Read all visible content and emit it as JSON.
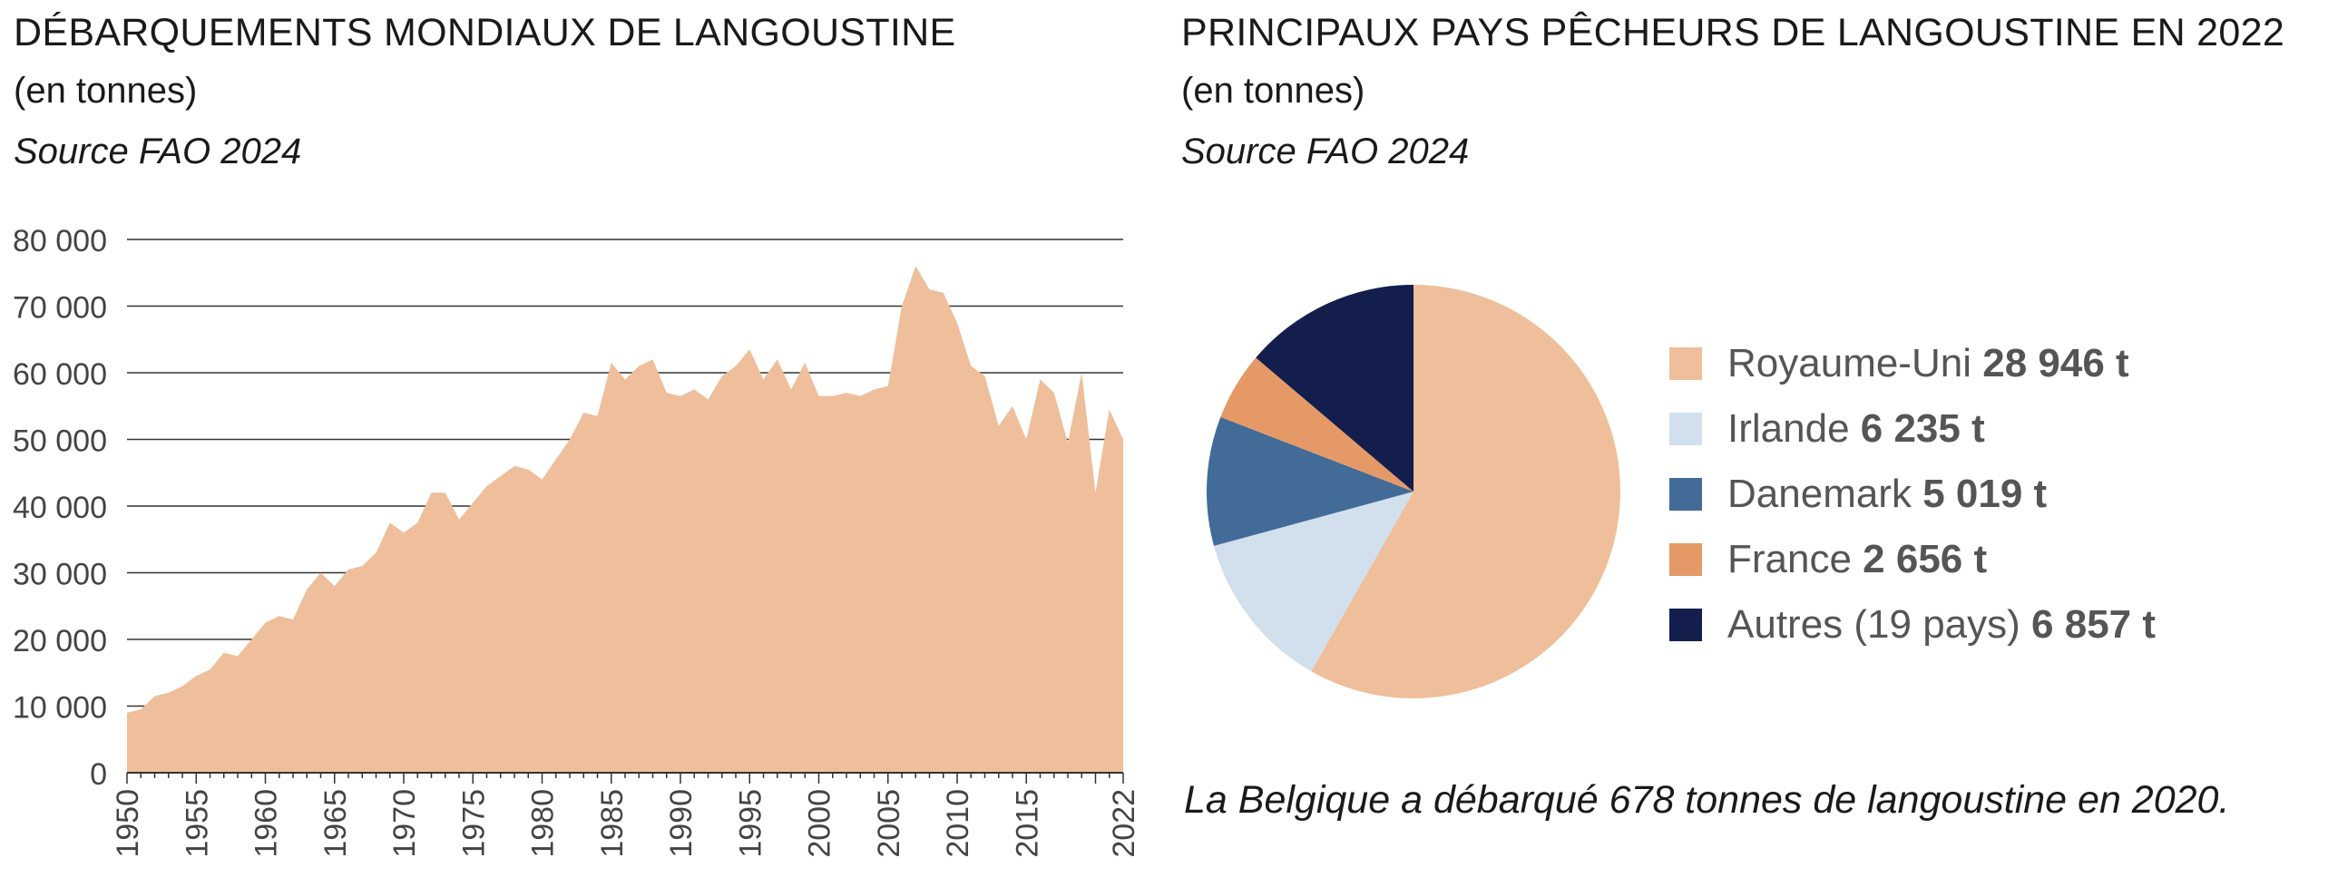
{
  "left": {
    "title": "DÉBARQUEMENTS MONDIAUX DE LANGOUSTINE",
    "unit": "(en tonnes)",
    "source": "Source FAO 2024"
  },
  "right": {
    "title": "PRINCIPAUX PAYS PÊCHEURS DE LANGOUSTINE EN 2022",
    "unit": "(en tonnes)",
    "source": "Source FAO 2024",
    "note": "La Belgique a débarqué 678 tonnes de langoustine en 2020."
  },
  "colors": {
    "area_fill": "#eebf9a",
    "gridline": "#333333",
    "axis_text": "#444444"
  },
  "chart_data": [
    {
      "type": "area",
      "title": "DÉBARQUEMENTS MONDIAUX DE LANGOUSTINE",
      "xlabel": "",
      "ylabel": "",
      "ylim": [
        0,
        80000
      ],
      "xlim": [
        1950,
        2022
      ],
      "grid": true,
      "y_ticks": [
        0,
        10000,
        20000,
        30000,
        40000,
        50000,
        60000,
        70000,
        80000
      ],
      "y_tick_labels": [
        "0",
        "10 000",
        "20 000",
        "30 000",
        "40 000",
        "50 000",
        "60 000",
        "70 000",
        "80 000"
      ],
      "x_tick_labels": [
        "1950",
        "1955",
        "1960",
        "1965",
        "1970",
        "1975",
        "1980",
        "1985",
        "1990",
        "1995",
        "2000",
        "2005",
        "2010",
        "2015",
        "2022"
      ],
      "x_ticks": [
        1950,
        1955,
        1960,
        1965,
        1970,
        1975,
        1980,
        1985,
        1990,
        1995,
        2000,
        2005,
        2010,
        2015,
        2022
      ],
      "x": [
        1950,
        1951,
        1952,
        1953,
        1954,
        1955,
        1956,
        1957,
        1958,
        1959,
        1960,
        1961,
        1962,
        1963,
        1964,
        1965,
        1966,
        1967,
        1968,
        1969,
        1970,
        1971,
        1972,
        1973,
        1974,
        1975,
        1976,
        1977,
        1978,
        1979,
        1980,
        1981,
        1982,
        1983,
        1984,
        1985,
        1986,
        1987,
        1988,
        1989,
        1990,
        1991,
        1992,
        1993,
        1994,
        1995,
        1996,
        1997,
        1998,
        1999,
        2000,
        2001,
        2002,
        2003,
        2004,
        2005,
        2006,
        2007,
        2008,
        2009,
        2010,
        2011,
        2012,
        2013,
        2014,
        2015,
        2016,
        2017,
        2018,
        2019,
        2020,
        2021,
        2022
      ],
      "values": [
        9000,
        9500,
        11500,
        12000,
        13000,
        14500,
        15500,
        18000,
        17500,
        20000,
        22500,
        23500,
        23000,
        27500,
        30000,
        28000,
        30500,
        31000,
        33000,
        37500,
        36000,
        37500,
        42000,
        42000,
        38000,
        40500,
        43000,
        44500,
        46000,
        45500,
        44000,
        47000,
        50000,
        54000,
        53500,
        61500,
        59000,
        61000,
        62000,
        57000,
        56500,
        57500,
        56000,
        59500,
        61000,
        63500,
        59000,
        62000,
        57500,
        61500,
        56500,
        56500,
        57000,
        56500,
        57500,
        58000,
        70000,
        76000,
        72500,
        72000,
        67500,
        61000,
        59500,
        52000,
        55000,
        50000,
        59000,
        57000,
        49500,
        60000,
        42000,
        54500,
        50000
      ]
    },
    {
      "type": "pie",
      "title": "PRINCIPAUX PAYS PÊCHEURS DE LANGOUSTINE EN 2022",
      "legend_position": "right",
      "slices": [
        {
          "name": "Royaume-Uni",
          "value": 28946,
          "label": "28 946 t",
          "color": "#eebf9a"
        },
        {
          "name": "Irlande",
          "value": 6235,
          "label": "6 235 t",
          "color": "#d2dfec"
        },
        {
          "name": "Danemark",
          "value": 5019,
          "label": "5 019 t",
          "color": "#426b98"
        },
        {
          "name": "France",
          "value": 2656,
          "label": "2 656 t",
          "color": "#e49966"
        },
        {
          "name": "Autres (19 pays)",
          "value": 6857,
          "label": "6 857 t",
          "color": "#141e4c"
        }
      ]
    }
  ]
}
